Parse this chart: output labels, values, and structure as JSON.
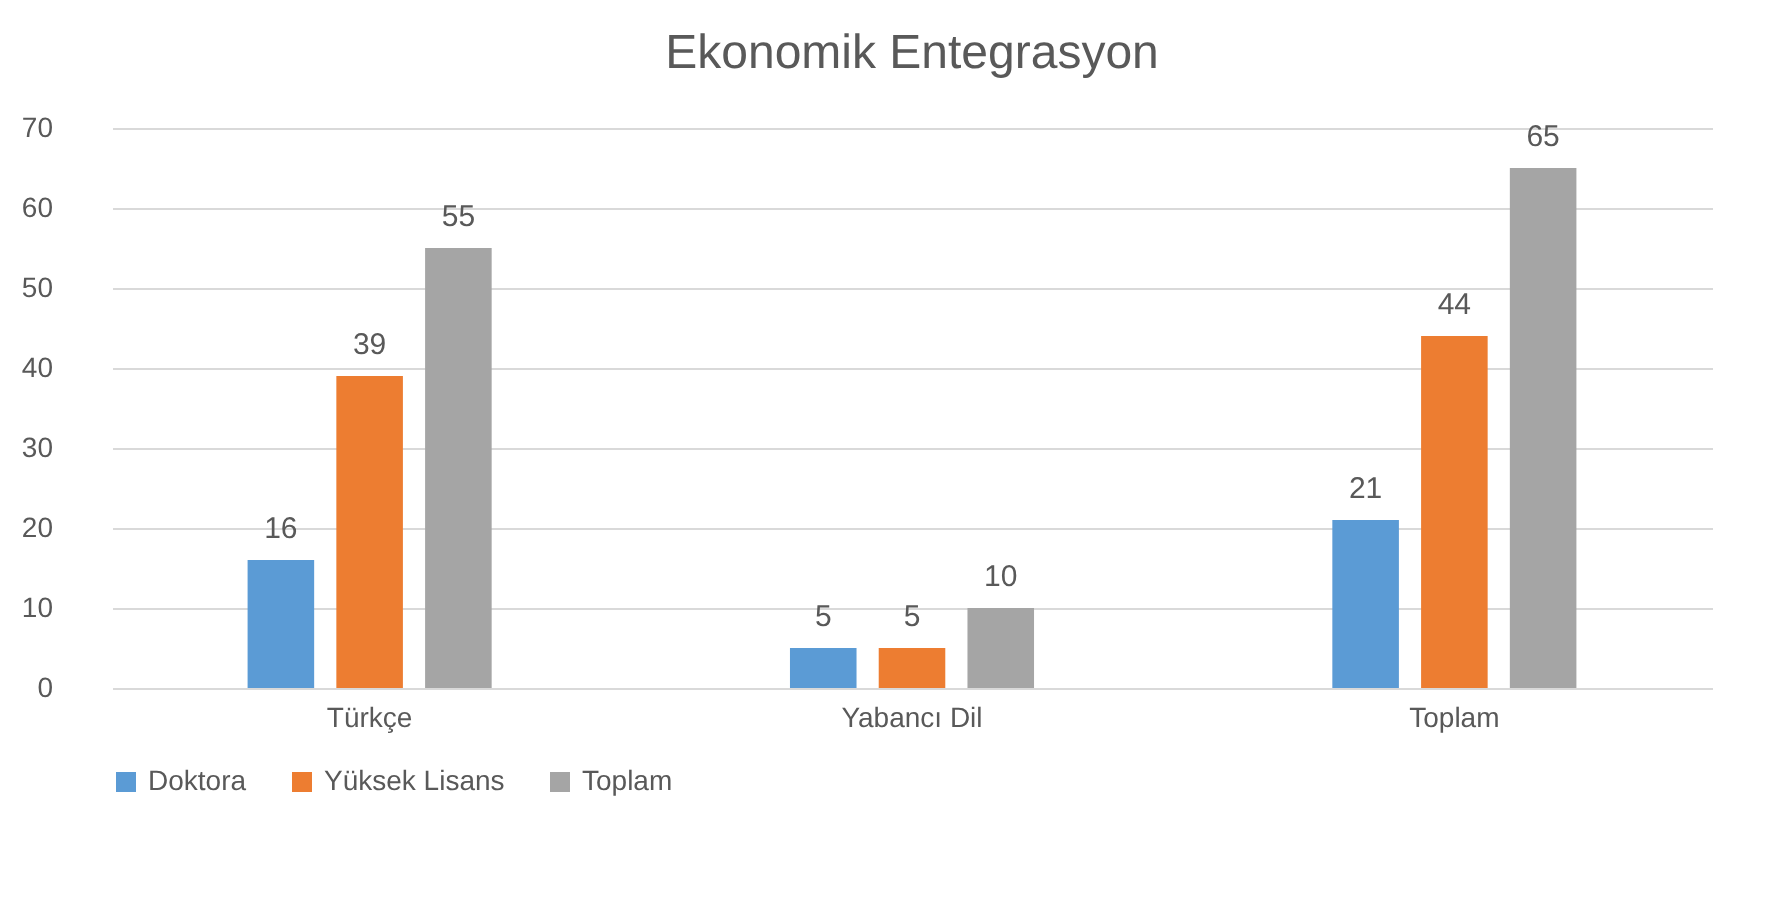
{
  "chart_data": {
    "type": "bar",
    "title": "Ekonomik Entegrasyon",
    "categories": [
      "Türkçe",
      "Yabancı Dil",
      "Toplam"
    ],
    "series": [
      {
        "name": "Doktora",
        "color": "#5b9bd5",
        "values": [
          16,
          5,
          21
        ]
      },
      {
        "name": "Yüksek Lisans",
        "color": "#ed7d31",
        "values": [
          39,
          5,
          44
        ]
      },
      {
        "name": "Toplam",
        "color": "#a5a5a5",
        "values": [
          55,
          10,
          65
        ]
      }
    ],
    "ylim": [
      0,
      70
    ],
    "yticks": [
      0,
      10,
      20,
      30,
      40,
      50,
      60,
      70
    ],
    "grid": "y",
    "legend": "bottom",
    "data_labels": true
  }
}
